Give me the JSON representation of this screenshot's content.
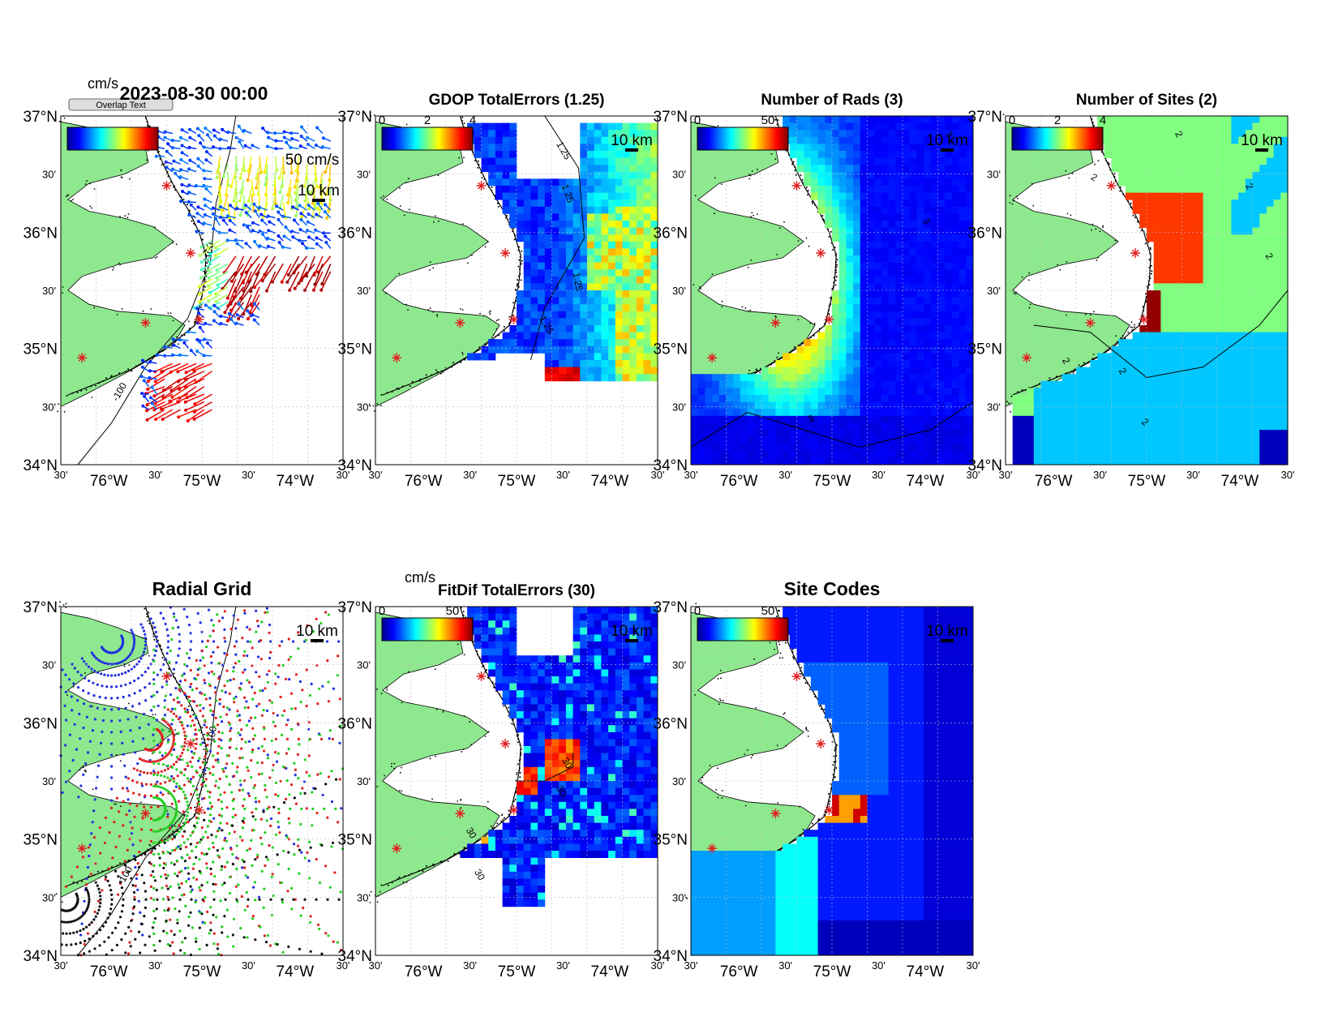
{
  "figure": {
    "timestamp": "2023-08-30 00:00",
    "overlap_text": "Overlap Text"
  },
  "ticks": {
    "lat_major": [
      "37°N",
      "36°N",
      "35°N",
      "34°N"
    ],
    "lat_minor": "30'",
    "lon_major": [
      "76°W",
      "75°W",
      "74°W"
    ],
    "lon_minor": "30'"
  },
  "labels": {
    "scale_km": "10 km",
    "vector_scale": "50 cm/s",
    "cb_unit": "cm/s",
    "contour_100": "-100"
  },
  "colors": {
    "land": "#8ee88e",
    "vectors": [
      "#3050e8",
      "#20c0e8",
      "#80e060",
      "#f0e020",
      "#f08010",
      "#d01010",
      "#800000"
    ],
    "grid_sites": [
      "#2030e0",
      "#e02020",
      "#20d020",
      "#101010"
    ],
    "site_marker": "#e02020"
  },
  "panels": [
    {
      "id": "totals",
      "title": "",
      "type": "vectors",
      "colorbar": {
        "ticks": []
      },
      "contours": [
        "-100",
        "-100"
      ]
    },
    {
      "id": "gdop",
      "title": "GDOP TotalErrors (1.25)",
      "type": "heatmap",
      "colorbar": {
        "ticks": [
          "0",
          "2",
          "4"
        ]
      },
      "contours": [
        "1.25",
        "1.25",
        "1.25",
        "1.25"
      ]
    },
    {
      "id": "nrads",
      "title": "Number of Rads (3)",
      "type": "heatmap",
      "colorbar": {
        "ticks": [
          "0",
          "50"
        ]
      },
      "contours": [
        "3",
        "3",
        "3"
      ]
    },
    {
      "id": "nsites",
      "title": "Number of Sites (2)",
      "type": "heatmap",
      "colorbar": {
        "ticks": [
          "0",
          "2",
          "4"
        ]
      },
      "contours": [
        "2",
        "2",
        "2",
        "2",
        "2",
        "2",
        "2"
      ]
    },
    {
      "id": "radgrid",
      "title": "Radial Grid",
      "type": "grid",
      "colorbar": {
        "ticks": []
      },
      "contours": [
        "-100",
        "-100"
      ]
    },
    {
      "id": "fitdif",
      "title": "FitDif TotalErrors (30)",
      "type": "heatmap",
      "colorbar": {
        "ticks": [
          "0",
          "50"
        ]
      },
      "contours": [
        "30",
        "30",
        "30",
        "30"
      ]
    },
    {
      "id": "sitecodes",
      "title": "Site Codes",
      "type": "heatmap",
      "colorbar": {
        "ticks": [
          "0",
          "50"
        ]
      },
      "contours": []
    }
  ]
}
